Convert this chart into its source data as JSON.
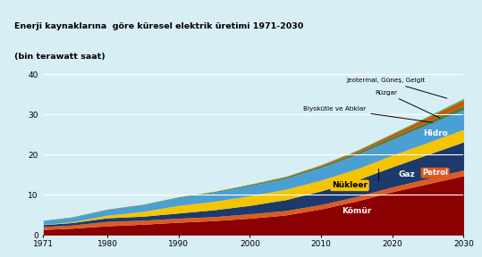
{
  "title_line1": "Enerji kaynaklarına  göre küresel elektrik üretimi 1971-2030",
  "title_line2": "(bin terawatt saat)",
  "title_bg": "#8ECACA",
  "plot_bg": "#D8EEF5",
  "years": [
    1971,
    1975,
    1980,
    1985,
    1990,
    1995,
    2000,
    2005,
    2010,
    2015,
    2020,
    2025,
    2030
  ],
  "komur": [
    1.4,
    1.7,
    2.3,
    2.7,
    3.2,
    3.6,
    4.2,
    5.0,
    6.5,
    8.5,
    10.8,
    12.8,
    14.8
  ],
  "petrol": [
    0.7,
    0.8,
    1.1,
    1.0,
    1.0,
    1.0,
    1.1,
    1.1,
    1.1,
    1.1,
    1.2,
    1.3,
    1.4
  ],
  "gaz": [
    0.5,
    0.6,
    0.9,
    1.0,
    1.3,
    1.7,
    2.1,
    2.7,
    3.4,
    4.1,
    5.0,
    6.0,
    7.0
  ],
  "nukleer": [
    0.05,
    0.2,
    0.65,
    1.2,
    1.9,
    2.1,
    2.4,
    2.6,
    2.7,
    2.8,
    2.9,
    3.0,
    3.1
  ],
  "hidro": [
    0.9,
    1.1,
    1.4,
    1.6,
    1.9,
    2.2,
    2.5,
    2.7,
    3.1,
    3.5,
    3.9,
    4.4,
    4.9
  ],
  "biyokutle": [
    0.1,
    0.1,
    0.1,
    0.14,
    0.18,
    0.22,
    0.28,
    0.36,
    0.46,
    0.58,
    0.72,
    0.9,
    1.1
  ],
  "ruzgar": [
    0.0,
    0.0,
    0.0,
    0.0,
    0.01,
    0.02,
    0.04,
    0.1,
    0.2,
    0.4,
    0.65,
    1.0,
    1.4
  ],
  "jeotermal": [
    0.01,
    0.01,
    0.02,
    0.03,
    0.04,
    0.05,
    0.06,
    0.07,
    0.09,
    0.12,
    0.17,
    0.25,
    0.35
  ],
  "colors": {
    "komur": "#8B0000",
    "petrol": "#E05A20",
    "gaz": "#1C3A6B",
    "nukleer": "#F5C400",
    "hidro": "#4A9FD4",
    "biyokutle": "#5A7A3C",
    "ruzgar": "#CC5500",
    "jeotermal": "#40BB60"
  },
  "ylim": [
    0,
    40
  ],
  "xticks": [
    1971,
    1980,
    1990,
    2000,
    2010,
    2020,
    2030
  ],
  "yticks": [
    0,
    10,
    20,
    30,
    40
  ]
}
